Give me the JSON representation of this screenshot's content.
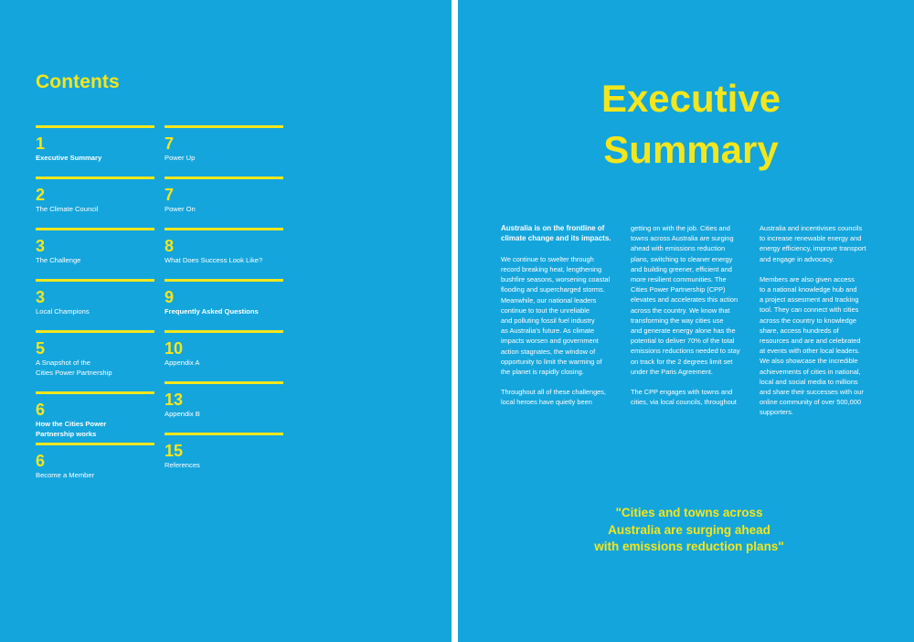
{
  "colors": {
    "background": "#14a5dc",
    "accent": "#f4e61c",
    "text": "#ffffff"
  },
  "contents": {
    "title": "Contents",
    "column1": [
      {
        "num": "1",
        "label": "Executive Summary",
        "bold": true
      },
      {
        "num": "2",
        "label": "The Climate Council",
        "bold": false
      },
      {
        "num": "3",
        "label": "The Challenge",
        "bold": false
      },
      {
        "num": "3",
        "label": "Local Champions",
        "bold": false
      },
      {
        "num": "5",
        "label": "A Snapshot of the\nCities Power Partnership",
        "bold": false
      },
      {
        "num": "6",
        "label": "How the Cities Power\nPartnership works",
        "bold": true
      },
      {
        "num": "6",
        "label": "Become a Member",
        "bold": false
      }
    ],
    "column2": [
      {
        "num": "7",
        "label": "Power Up",
        "bold": false
      },
      {
        "num": "7",
        "label": "Power On",
        "bold": false
      },
      {
        "num": "8",
        "label": "What Does Success Look Like?",
        "bold": false
      },
      {
        "num": "9",
        "label": "Frequently Asked Questions",
        "bold": true
      },
      {
        "num": "10",
        "label": "Appendix A",
        "bold": false
      },
      {
        "num": "13",
        "label": "Appendix B",
        "bold": false
      },
      {
        "num": "15",
        "label": "References",
        "bold": false
      }
    ]
  },
  "executive_summary": {
    "title_line1": "Executive",
    "title_line2": "Summary",
    "col1_lead": "Australia is on the frontline of\nclimate change and its impacts.",
    "col1_p1": "We continue to swelter through\nrecord breaking heat, lengthening\nbushfire seasons, worsening coastal\nflooding and supercharged storms.\nMeanwhile, our national leaders\ncontinue to tout the unreliable\nand polluting fossil fuel industry\nas Australia's future. As climate\nimpacts worsen and government\naction stagnates, the window of\nopportunity to limit the warming of\nthe planet is rapidly closing.",
    "col1_p2": "Throughout all of these challenges,\nlocal heroes have quietly been",
    "col2_p1": "getting on with the job. Cities and\ntowns across Australia are surging\nahead with emissions reduction\nplans, switching to cleaner energy\nand building greener, efficient and\nmore resilient communities. The\nCities Power Partnership (CPP)\nelevates and accelerates this action\nacross the country. We know that\ntransforming the way cities use\nand generate energy alone has the\npotential to deliver 70% of the total\nemissions reductions needed to stay\non track for the 2 degrees limit set\nunder the Paris Agreement.",
    "col2_p2": "The CPP engages with towns and\ncities, via local councils, throughout",
    "col3_p1": "Australia and incentivises councils\nto increase renewable energy and\nenergy efficiency, improve transport\nand engage in advocacy.",
    "col3_p2": "Members are also given access\nto a national knowledge hub and\na project assesment and tracking\ntool. They can connect with cities\nacross the country to knowledge\nshare, access hundreds of\nresources and are and celebrated\nat events with other local leaders.\nWe also showcase the incredible\nachievements of cities in national,\nlocal and social media to millions\nand share their successes with our\nonline community of over 500,000\nsupporters.",
    "quote": "\"Cities and towns across\nAustralia are surging ahead\nwith emissions reduction plans\""
  }
}
